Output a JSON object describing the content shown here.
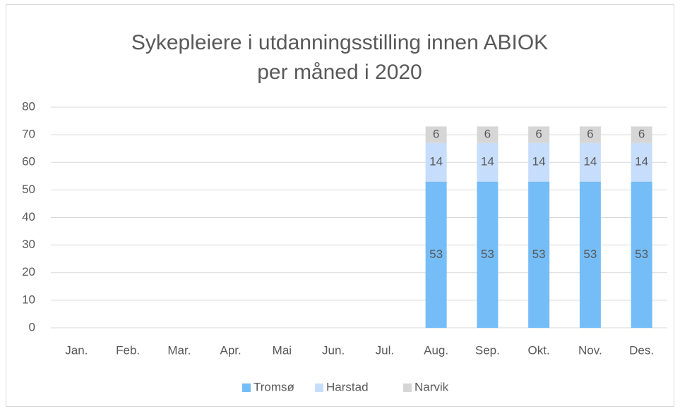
{
  "chart_data": {
    "type": "stacked_bar",
    "title": "Sykepleiere i utdanningsstilling innen ABIOK per måned i 2020",
    "categories": [
      "Jan.",
      "Feb.",
      "Mar.",
      "Apr.",
      "Mai",
      "Jun.",
      "Jul.",
      "Aug.",
      "Sep.",
      "Okt.",
      "Nov.",
      "Des."
    ],
    "series": [
      {
        "name": "Tromsø",
        "color": "#75bdf7",
        "values": [
          null,
          null,
          null,
          null,
          null,
          null,
          null,
          53,
          53,
          53,
          53,
          53
        ]
      },
      {
        "name": "Harstad",
        "color": "#c6ddfb",
        "values": [
          null,
          null,
          null,
          null,
          null,
          null,
          null,
          14,
          14,
          14,
          14,
          14
        ]
      },
      {
        "name": "Narvik",
        "color": "#d6d6d6",
        "values": [
          null,
          null,
          null,
          null,
          null,
          null,
          null,
          6,
          6,
          6,
          6,
          6
        ]
      }
    ],
    "ylim": [
      0,
      80
    ],
    "yticks": [
      0,
      10,
      20,
      30,
      40,
      50,
      60,
      70,
      80
    ],
    "grid": true,
    "legend": "bottom"
  }
}
